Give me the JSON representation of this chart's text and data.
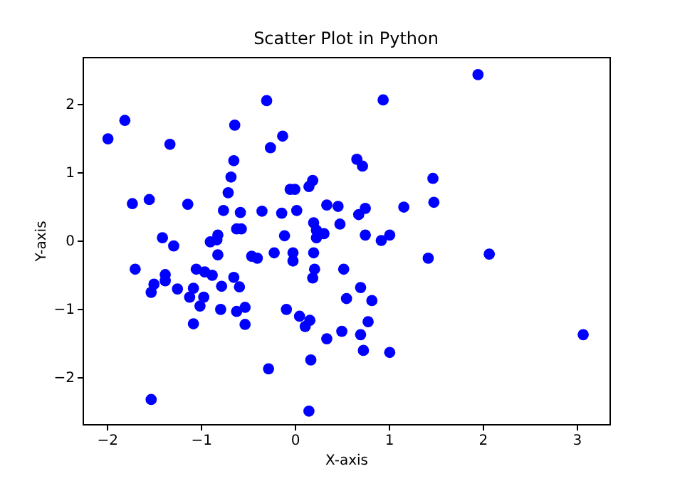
{
  "chart_data": {
    "type": "scatter",
    "title": "Scatter Plot in Python",
    "xlabel": "X-axis",
    "ylabel": "Y-axis",
    "marker": "circle",
    "grid": false,
    "xlim": [
      -2.26,
      3.35
    ],
    "ylim": [
      -2.69,
      2.69
    ],
    "xticks": [
      -2,
      -1,
      0,
      1,
      2,
      3
    ],
    "yticks": [
      -2,
      -1,
      0,
      1,
      2
    ],
    "series": [
      {
        "color": "#0000ff",
        "x": [
          -1.99,
          -1.81,
          -1.33,
          -0.3,
          -0.64,
          -0.13,
          -0.26,
          -0.65,
          -0.68,
          -0.71,
          -0.05,
          0.0,
          0.15,
          0.19,
          -1.73,
          -1.55,
          -1.14,
          -0.76,
          -0.58,
          -0.35,
          -0.14,
          0.02,
          0.34,
          0.46,
          0.48,
          0.2,
          0.23,
          0.31,
          0.23,
          -0.62,
          -0.57,
          -0.11,
          -1.41,
          -1.29,
          -0.9,
          -0.83,
          -0.82,
          1.95,
          0.94,
          0.66,
          0.72,
          1.47,
          1.48,
          1.16,
          0.75,
          0.68,
          0.75,
          0.92,
          1.01,
          -1.7,
          -1.5,
          -1.53,
          -1.38,
          -1.38,
          -1.25,
          -1.05,
          -0.96,
          -0.88,
          -1.08,
          -1.12,
          -0.97,
          -1.01,
          -1.08,
          -0.82,
          -0.78,
          -0.79,
          -0.65,
          -0.59,
          -0.62,
          -0.53,
          -0.53,
          -0.46,
          -0.4,
          -0.22,
          -0.02,
          -0.02,
          0.2,
          0.21,
          0.19,
          0.52,
          0.55,
          -0.09,
          0.05,
          0.11,
          0.16,
          0.34,
          0.5,
          0.17,
          -0.28,
          -1.53,
          0.15,
          1.42,
          2.07,
          0.7,
          0.82,
          0.78,
          0.7,
          0.73,
          1.01,
          3.07
        ],
        "values": [
          1.49,
          1.76,
          1.41,
          2.05,
          1.69,
          1.53,
          1.36,
          1.17,
          0.93,
          0.7,
          0.75,
          0.75,
          0.79,
          0.88,
          0.54,
          0.6,
          0.53,
          0.44,
          0.41,
          0.43,
          0.4,
          0.44,
          0.52,
          0.5,
          0.24,
          0.26,
          0.15,
          0.1,
          0.04,
          0.17,
          0.17,
          0.07,
          0.04,
          -0.08,
          -0.02,
          0.01,
          0.08,
          2.43,
          2.06,
          1.19,
          1.09,
          0.91,
          0.56,
          0.49,
          0.47,
          0.38,
          0.08,
          0.0,
          0.08,
          -0.42,
          -0.64,
          -0.76,
          -0.5,
          -0.59,
          -0.71,
          -0.42,
          -0.46,
          -0.51,
          -0.7,
          -0.83,
          -0.83,
          -0.96,
          -1.22,
          -0.21,
          -0.67,
          -1.01,
          -0.54,
          -0.68,
          -1.04,
          -0.98,
          -1.23,
          -0.23,
          -0.26,
          -0.18,
          -0.18,
          -0.3,
          -0.18,
          -0.42,
          -0.55,
          -0.42,
          -0.85,
          -1.01,
          -1.11,
          -1.26,
          -1.17,
          -1.44,
          -1.33,
          -1.75,
          -1.88,
          -2.33,
          -2.5,
          -0.26,
          -0.2,
          -0.69,
          -0.88,
          -1.19,
          -1.38,
          -1.61,
          -1.64,
          -1.38
        ]
      }
    ]
  }
}
